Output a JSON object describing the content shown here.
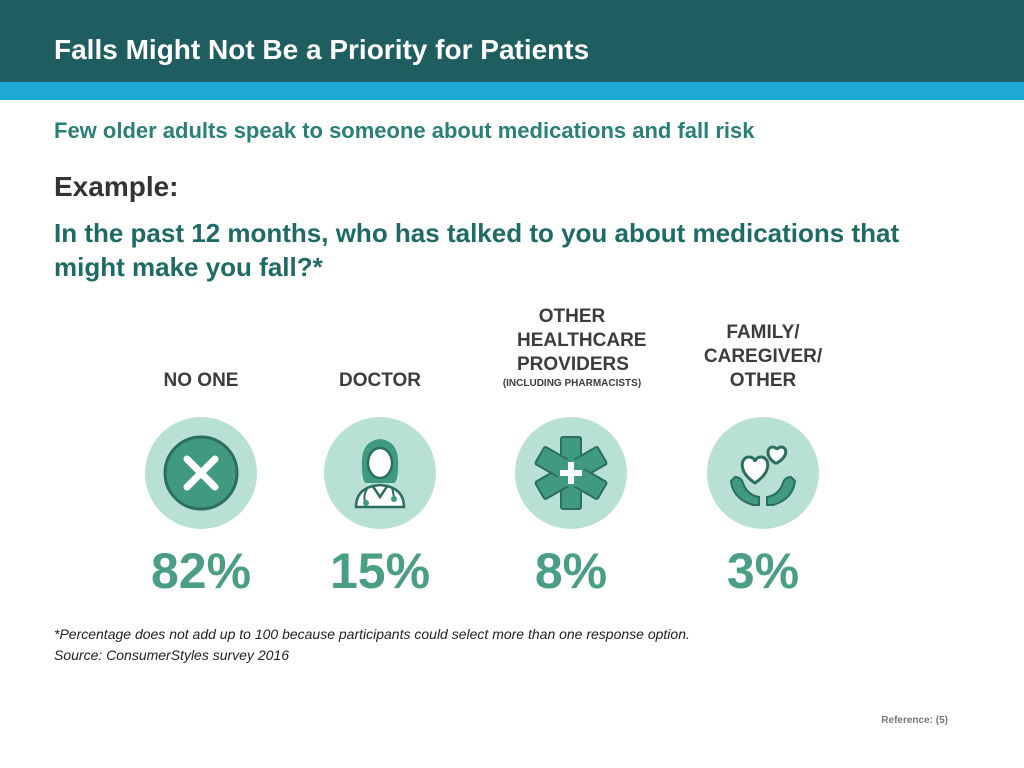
{
  "header": {
    "title": "Falls Might Not Be a Priority for Patients"
  },
  "subtitle": "Few older adults speak to someone about medications and fall risk",
  "example_label": "Example:",
  "question": "In the past 12 months, who has talked to you about medications that might make you fall?*",
  "categories": [
    {
      "label": "NO ONE",
      "sublabel": "",
      "percent": "82%",
      "icon": "x-icon"
    },
    {
      "label": "DOCTOR",
      "sublabel": "",
      "percent": "15%",
      "icon": "doctor-icon"
    },
    {
      "label": "OTHER HEALTHCARE PROVIDERS",
      "sublabel": "(INCLUDING PHARMACISTS)",
      "percent": "8%",
      "icon": "star-of-life-icon"
    },
    {
      "label": "FAMILY/ CAREGIVER/ OTHER",
      "sublabel": "",
      "percent": "3%",
      "icon": "heart-hands-icon"
    }
  ],
  "footnote": {
    "line1": "*Percentage does not add up to 100 because participants could select more than one response option.",
    "line2": "Source: ConsumerStyles survey 2016"
  },
  "reference": "Reference: (5)",
  "colors": {
    "header_bg": "#1e5e60",
    "accent_stripe": "#1ea8d6",
    "icon_circle": "#b9e0d4",
    "icon_fg": "#3f9a80",
    "percent_text": "#4a9e86"
  }
}
